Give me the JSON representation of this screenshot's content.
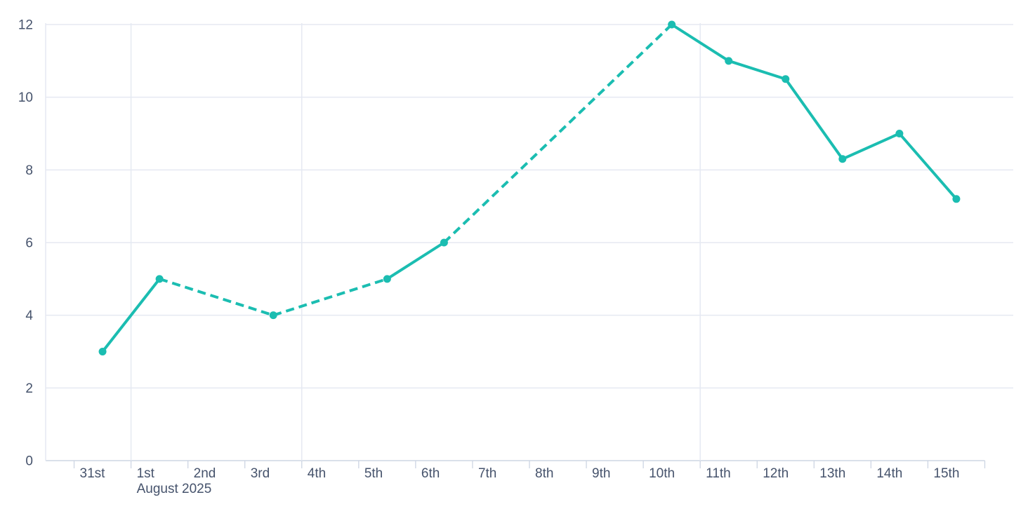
{
  "chart_data": {
    "type": "line",
    "title": "",
    "subtitle": "",
    "legend": false,
    "grid": true,
    "x_axis": {
      "tick_labels": [
        "31st",
        "1st",
        "2nd",
        "3rd",
        "4th",
        "5th",
        "6th",
        "7th",
        "8th",
        "9th",
        "10th",
        "11th",
        "12th",
        "13th",
        "14th",
        "15th"
      ],
      "month_label": "August 2025",
      "month_label_under": "1st",
      "gridline_ticks": [
        "1st",
        "4th",
        "11th"
      ]
    },
    "y_axis": {
      "min": 0,
      "max": 12,
      "tick_step": 2,
      "tick_labels": [
        "0",
        "2",
        "4",
        "6",
        "8",
        "10",
        "12"
      ]
    },
    "ylim": [
      0,
      12
    ],
    "series": [
      {
        "name": "values",
        "color": "#1bbdb1",
        "marker": "circle",
        "points": [
          {
            "date": "31st",
            "value": 3
          },
          {
            "date": "1st",
            "value": 5
          },
          {
            "date": "3rd",
            "value": 4
          },
          {
            "date": "5th",
            "value": 5
          },
          {
            "date": "6th",
            "value": 6
          },
          {
            "date": "10th",
            "value": 12
          },
          {
            "date": "11th",
            "value": 11
          },
          {
            "date": "12th",
            "value": 10.5
          },
          {
            "date": "13th",
            "value": 8.3
          },
          {
            "date": "14th",
            "value": 9
          },
          {
            "date": "15th",
            "value": 7.2
          }
        ],
        "dashed_segments": [
          [
            "1st",
            "3rd"
          ],
          [
            "3rd",
            "5th"
          ],
          [
            "6th",
            "10th"
          ]
        ]
      }
    ],
    "colors": {
      "line": "#1bbdb1",
      "grid": "#e5e9f2",
      "axis": "#cdd5e3",
      "tick": "#cdd5e3",
      "label": "#46536c",
      "background": "#ffffff"
    }
  }
}
